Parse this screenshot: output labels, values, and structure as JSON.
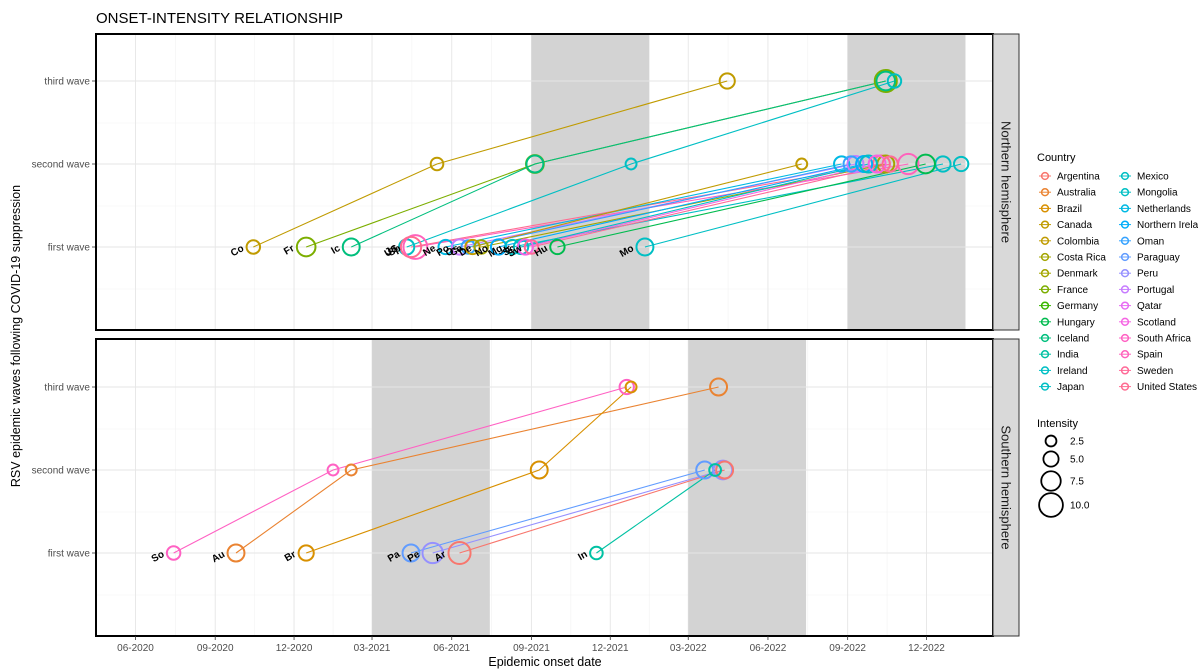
{
  "chart_data": {
    "type": "scatter",
    "title": "ONSET-INTENSITY RELATIONSHIP",
    "xlabel": "Epidemic onset date",
    "ylabel": "RSV epidemic waves following COVID-19 suppression",
    "x_ticks": [
      "06-2020",
      "09-2020",
      "12-2020",
      "03-2021",
      "06-2021",
      "09-2021",
      "12-2021",
      "03-2022",
      "06-2022",
      "09-2022",
      "12-2022"
    ],
    "y_categories": [
      "first wave",
      "second wave",
      "third wave"
    ],
    "legend_title": "Country",
    "size_legend_title": "Intensity",
    "size_legend_values": [
      2.5,
      5.0,
      7.5,
      10.0
    ],
    "size_legend_labels": [
      "2.5",
      "5.0",
      "7.5",
      "10.0"
    ],
    "countries": [
      {
        "name": "Argentina",
        "color": "#F8766D"
      },
      {
        "name": "Australia",
        "color": "#EA8331"
      },
      {
        "name": "Brazil",
        "color": "#D89000"
      },
      {
        "name": "Canada",
        "color": "#C09B00"
      },
      {
        "name": "Colombia",
        "color": "#C09B00"
      },
      {
        "name": "Costa Rica",
        "color": "#A3A500"
      },
      {
        "name": "Denmark",
        "color": "#A3A500"
      },
      {
        "name": "France",
        "color": "#7CAE00"
      },
      {
        "name": "Germany",
        "color": "#39B600"
      },
      {
        "name": "Hungary",
        "color": "#00BB4E"
      },
      {
        "name": "Iceland",
        "color": "#00BF7D"
      },
      {
        "name": "India",
        "color": "#00C1A3"
      },
      {
        "name": "Ireland",
        "color": "#00BFC4"
      },
      {
        "name": "Japan",
        "color": "#00BFC4"
      },
      {
        "name": "Mexico",
        "color": "#00BFC4"
      },
      {
        "name": "Mongolia",
        "color": "#00BFC4"
      },
      {
        "name": "Netherlands",
        "color": "#00B9E3"
      },
      {
        "name": "Northern Ireland",
        "color": "#00ADFA"
      },
      {
        "name": "Oman",
        "color": "#35A2FF"
      },
      {
        "name": "Paraguay",
        "color": "#619CFF"
      },
      {
        "name": "Peru",
        "color": "#9590FF"
      },
      {
        "name": "Portugal",
        "color": "#C77CFF"
      },
      {
        "name": "Qatar",
        "color": "#E76BF3"
      },
      {
        "name": "Scotland",
        "color": "#F564E3"
      },
      {
        "name": "South Africa",
        "color": "#FF61C3"
      },
      {
        "name": "Spain",
        "color": "#FF62BC"
      },
      {
        "name": "Sweden",
        "color": "#FF6A98"
      },
      {
        "name": "United States",
        "color": "#FF6C91"
      }
    ],
    "panels": [
      {
        "name": "Northern hemisphere",
        "shaded_periods": [
          [
            "2021-09-01",
            "2022-01-15"
          ],
          [
            "2022-09-01",
            "2023-01-15"
          ]
        ],
        "tracks": [
          {
            "label": "Co",
            "color": "#C09B00",
            "points": [
              {
                "x": "2020-10-15",
                "wave": 1,
                "size": 4
              },
              {
                "x": "2021-05-15",
                "wave": 2,
                "size": 3.5
              },
              {
                "x": "2022-04-15",
                "wave": 3,
                "size": 5
              }
            ]
          },
          {
            "label": "Fr",
            "color": "#7CAE00",
            "points": [
              {
                "x": "2020-12-15",
                "wave": 1,
                "size": 7
              },
              {
                "x": "2021-09-05",
                "wave": 2,
                "size": 6.5
              },
              {
                "x": "2022-10-15",
                "wave": 3,
                "size": 9
              }
            ]
          },
          {
            "label": "Ic",
            "color": "#00BF7D",
            "points": [
              {
                "x": "2021-02-05",
                "wave": 1,
                "size": 6
              },
              {
                "x": "2021-09-05",
                "wave": 2,
                "size": 6
              },
              {
                "x": "2022-10-15",
                "wave": 3,
                "size": 7
              }
            ]
          },
          {
            "label": "Ja",
            "color": "#00BFC4",
            "points": [
              {
                "x": "2021-04-10",
                "wave": 1,
                "size": 5
              },
              {
                "x": "2021-12-25",
                "wave": 2,
                "size": 2.5
              },
              {
                "x": "2022-10-25",
                "wave": 3,
                "size": 4
              }
            ]
          },
          {
            "label": "Sp",
            "color": "#FF62BC",
            "points": [
              {
                "x": "2021-04-20",
                "wave": 1,
                "size": 10
              },
              {
                "x": "2022-11-10",
                "wave": 2,
                "size": 8
              }
            ]
          },
          {
            "label": "US",
            "color": "#FF6C91",
            "points": [
              {
                "x": "2021-04-15",
                "wave": 1,
                "size": 8
              },
              {
                "x": "2022-10-10",
                "wave": 2,
                "size": 6
              }
            ]
          },
          {
            "label": "Ne",
            "color": "#00B9E3",
            "points": [
              {
                "x": "2021-05-25",
                "wave": 1,
                "size": 4.5
              },
              {
                "x": "2022-08-25",
                "wave": 2,
                "size": 5
              }
            ]
          },
          {
            "label": "Po",
            "color": "#C77CFF",
            "points": [
              {
                "x": "2021-06-10",
                "wave": 1,
                "size": 5
              },
              {
                "x": "2022-09-10",
                "wave": 2,
                "size": 5.5
              }
            ]
          },
          {
            "label": "Os",
            "color": "#35A2FF",
            "points": [
              {
                "x": "2021-06-20",
                "wave": 1,
                "size": 4
              },
              {
                "x": "2022-09-05",
                "wave": 2,
                "size": 5
              }
            ]
          },
          {
            "label": "Ca",
            "color": "#C09B00",
            "points": [
              {
                "x": "2021-06-25",
                "wave": 1,
                "size": 4.5
              },
              {
                "x": "2022-07-10",
                "wave": 2,
                "size": 2.5
              }
            ]
          },
          {
            "label": "De",
            "color": "#A3A500",
            "points": [
              {
                "x": "2021-07-05",
                "wave": 1,
                "size": 4
              },
              {
                "x": "2022-10-15",
                "wave": 2,
                "size": 6
              }
            ]
          },
          {
            "label": "No",
            "color": "#00ADFA",
            "points": [
              {
                "x": "2021-07-25",
                "wave": 1,
                "size": 5
              },
              {
                "x": "2022-09-20",
                "wave": 2,
                "size": 5.5
              }
            ]
          },
          {
            "label": "Mg",
            "color": "#00BFC4",
            "points": [
              {
                "x": "2021-08-10",
                "wave": 1,
                "size": 4.5
              },
              {
                "x": "2022-12-20",
                "wave": 2,
                "size": 5
              }
            ]
          },
          {
            "label": "Ir",
            "color": "#00BFC4",
            "points": [
              {
                "x": "2021-08-20",
                "wave": 1,
                "size": 4.5
              },
              {
                "x": "2022-09-25",
                "wave": 2,
                "size": 6
              }
            ]
          },
          {
            "label": "Sc",
            "color": "#F564E3",
            "points": [
              {
                "x": "2021-08-25",
                "wave": 1,
                "size": 5
              },
              {
                "x": "2022-10-05",
                "wave": 2,
                "size": 6
              }
            ]
          },
          {
            "label": "Sw",
            "color": "#FF6A98",
            "points": [
              {
                "x": "2021-09-01",
                "wave": 1,
                "size": 4
              },
              {
                "x": "2022-10-20",
                "wave": 2,
                "size": 5
              }
            ]
          },
          {
            "label": "Hu",
            "color": "#00BB4E",
            "points": [
              {
                "x": "2021-10-01",
                "wave": 1,
                "size": 4.5
              },
              {
                "x": "2022-11-30",
                "wave": 2,
                "size": 7
              }
            ]
          },
          {
            "label": "Mo",
            "color": "#00BFC4",
            "points": [
              {
                "x": "2022-01-10",
                "wave": 1,
                "size": 6
              },
              {
                "x": "2023-01-10",
                "wave": 2,
                "size": 4.5
              }
            ]
          }
        ]
      },
      {
        "name": "Southern hemisphere",
        "shaded_periods": [
          [
            "2021-03-01",
            "2021-07-15"
          ],
          [
            "2022-03-01",
            "2022-07-15"
          ]
        ],
        "tracks": [
          {
            "label": "So",
            "color": "#FF61C3",
            "points": [
              {
                "x": "2020-07-15",
                "wave": 1,
                "size": 4
              },
              {
                "x": "2021-01-15",
                "wave": 2,
                "size": 2.5
              },
              {
                "x": "2021-12-20",
                "wave": 3,
                "size": 4.5
              }
            ]
          },
          {
            "label": "Au",
            "color": "#EA8331",
            "points": [
              {
                "x": "2020-09-25",
                "wave": 1,
                "size": 6
              },
              {
                "x": "2021-02-05",
                "wave": 2,
                "size": 2.5
              },
              {
                "x": "2022-04-05",
                "wave": 3,
                "size": 6
              }
            ]
          },
          {
            "label": "Br",
            "color": "#D89000",
            "points": [
              {
                "x": "2020-12-15",
                "wave": 1,
                "size": 5
              },
              {
                "x": "2021-09-10",
                "wave": 2,
                "size": 6
              },
              {
                "x": "2021-12-25",
                "wave": 3,
                "size": 2.5
              }
            ]
          },
          {
            "label": "Pa",
            "color": "#619CFF",
            "points": [
              {
                "x": "2021-04-15",
                "wave": 1,
                "size": 6
              },
              {
                "x": "2022-03-20",
                "wave": 2,
                "size": 6
              }
            ]
          },
          {
            "label": "Pe",
            "color": "#9590FF",
            "points": [
              {
                "x": "2021-05-10",
                "wave": 1,
                "size": 8
              },
              {
                "x": "2022-04-10",
                "wave": 2,
                "size": 7
              }
            ]
          },
          {
            "label": "Ar",
            "color": "#F8766D",
            "points": [
              {
                "x": "2021-06-10",
                "wave": 1,
                "size": 9
              },
              {
                "x": "2022-04-12",
                "wave": 2,
                "size": 6
              }
            ]
          },
          {
            "label": "In",
            "color": "#00C1A3",
            "points": [
              {
                "x": "2021-11-15",
                "wave": 1,
                "size": 3.5
              },
              {
                "x": "2022-04-01",
                "wave": 2,
                "size": 3
              }
            ]
          }
        ]
      }
    ]
  }
}
